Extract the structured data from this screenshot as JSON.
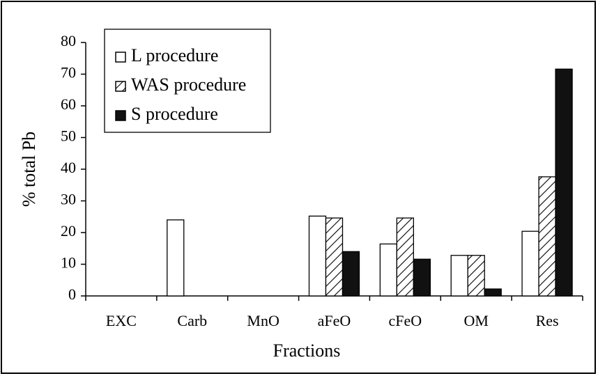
{
  "chart_data": {
    "type": "bar",
    "x_label": "Fractions",
    "y_label": "% total Pb",
    "categories": [
      "EXC",
      "Carb",
      "MnO",
      "aFeO",
      "cFeO",
      "OM",
      "Res"
    ],
    "series": [
      {
        "name": "L procedure",
        "color": "#ffffff",
        "hatch": false,
        "values": [
          0,
          24,
          0,
          25.2,
          16.4,
          12.8,
          20.4
        ]
      },
      {
        "name": "WAS procedure",
        "color": "#ffffff",
        "hatch": true,
        "values": [
          0,
          0,
          0,
          24.6,
          24.6,
          12.8,
          37.6
        ]
      },
      {
        "name": "S procedure",
        "color": "#111111",
        "hatch": false,
        "values": [
          0,
          0,
          0,
          14,
          11.6,
          2.2,
          71.6
        ]
      }
    ],
    "ylim": [
      0,
      80
    ],
    "yticks": [
      0,
      10,
      20,
      30,
      40,
      50,
      60,
      70,
      80
    ],
    "grid": false,
    "legend": "upper left"
  }
}
